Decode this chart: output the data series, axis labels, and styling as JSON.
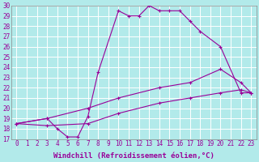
{
  "xlabel": "Windchill (Refroidissement éolien,°C)",
  "xlim": [
    -0.5,
    23.5
  ],
  "ylim": [
    17,
    30
  ],
  "xticks": [
    0,
    1,
    2,
    3,
    4,
    5,
    6,
    7,
    8,
    9,
    10,
    11,
    12,
    13,
    14,
    15,
    16,
    17,
    18,
    19,
    20,
    21,
    22,
    23
  ],
  "yticks": [
    17,
    18,
    19,
    20,
    21,
    22,
    23,
    24,
    25,
    26,
    27,
    28,
    29,
    30
  ],
  "background_color": "#b2eaea",
  "grid_color": "#c8e8e8",
  "line_color": "#990099",
  "line1_x": [
    0,
    3,
    4,
    5,
    6,
    7,
    8,
    10,
    11,
    12,
    13,
    14,
    15,
    16,
    17,
    18,
    20,
    22,
    23
  ],
  "line1_y": [
    18.5,
    19,
    18,
    17.2,
    17.2,
    19.2,
    23.5,
    29.5,
    29.0,
    29.0,
    30,
    29.5,
    29.5,
    29.5,
    28.5,
    27.5,
    26,
    21.5,
    21.5
  ],
  "line2_x": [
    0,
    3,
    7,
    10,
    14,
    17,
    20,
    22,
    23
  ],
  "line2_y": [
    18.5,
    19,
    20,
    21,
    22,
    22.5,
    23.8,
    22.5,
    21.5
  ],
  "line3_x": [
    0,
    3,
    7,
    10,
    14,
    17,
    20,
    22,
    23
  ],
  "line3_y": [
    18.5,
    18.3,
    18.5,
    19.5,
    20.5,
    21,
    21.5,
    21.8,
    21.5
  ],
  "tick_fontsize": 5.5,
  "xlabel_fontsize": 6.5
}
